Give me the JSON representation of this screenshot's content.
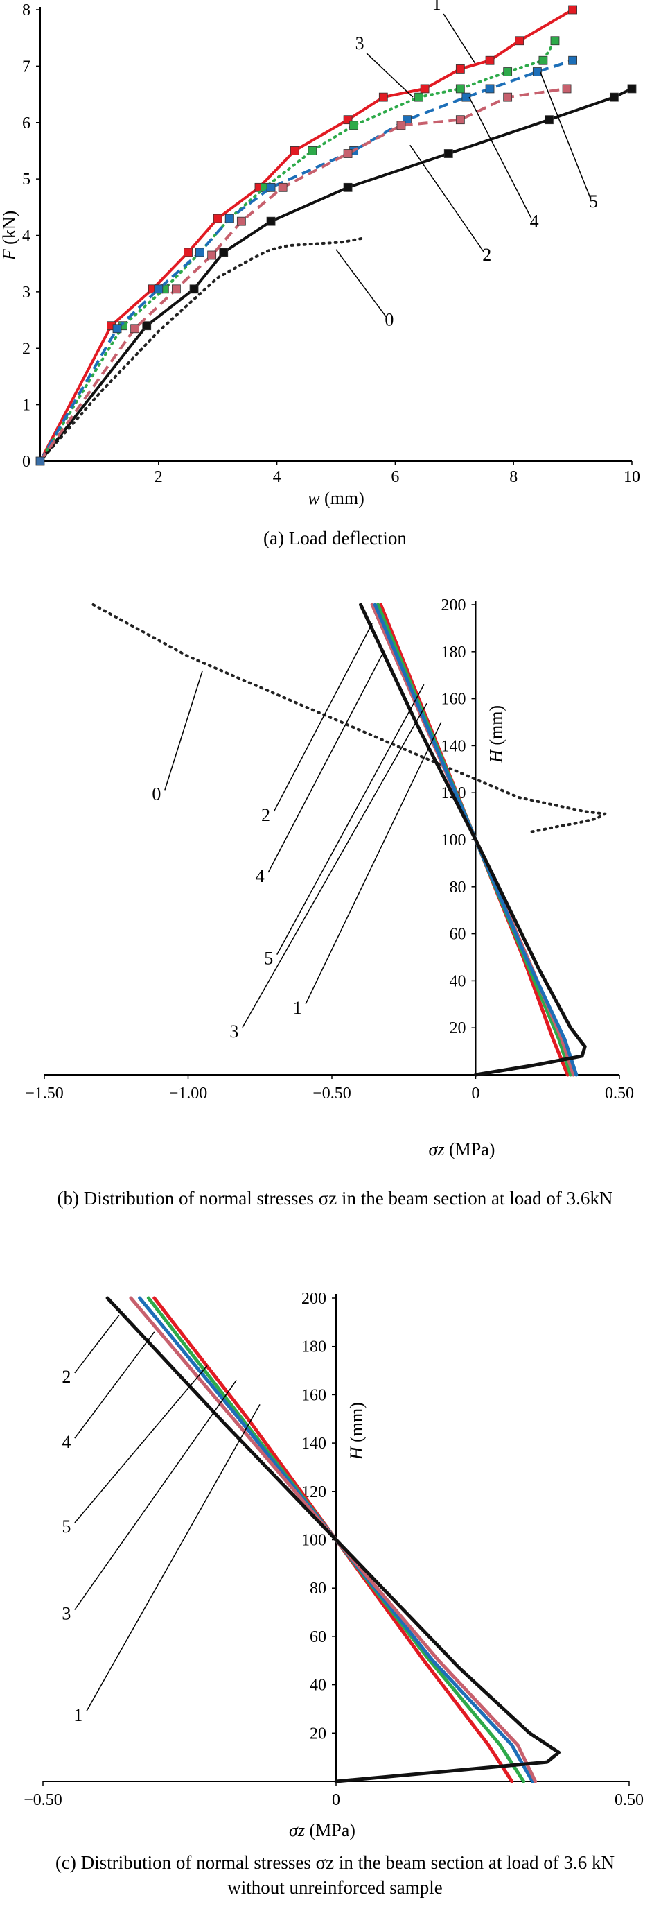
{
  "colors": {
    "curve0": "#222222",
    "curve1": "#e21b23",
    "curve2": "#111111",
    "curve3": "#2eaa4a",
    "curve4": "#1d6fb8",
    "curve5": "#c7606d",
    "axis": "#000000"
  },
  "chart_data": [
    {
      "type": "line",
      "id": "a",
      "caption": "(a) Load deflection",
      "xlabel_var": "w",
      "xlabel_unit": " (mm)",
      "ylabel_var": "F",
      "ylabel_unit": " (kN)",
      "xlim": [
        0,
        10
      ],
      "ylim": [
        0,
        8
      ],
      "xticks": [
        "2",
        "4",
        "6",
        "8",
        "10"
      ],
      "yticks": [
        "0",
        "1",
        "2",
        "3",
        "4",
        "5",
        "6",
        "7",
        "8"
      ],
      "series": [
        {
          "name": "0",
          "color_key": "curve0",
          "dash": "dot",
          "markers": false,
          "x": [
            0,
            1,
            2,
            3,
            3.6,
            3.9,
            4.2,
            5.1,
            5.45
          ],
          "y": [
            0,
            1.2,
            2.3,
            3.25,
            3.6,
            3.75,
            3.82,
            3.88,
            3.95
          ]
        },
        {
          "name": "1",
          "color_key": "curve1",
          "dash": "solid",
          "markers": true,
          "x": [
            0,
            1.2,
            1.9,
            2.5,
            3.0,
            3.7,
            4.3,
            5.2,
            5.8,
            6.5,
            7.1,
            7.6,
            8.1,
            9.0
          ],
          "y": [
            0,
            2.4,
            3.05,
            3.7,
            4.3,
            4.85,
            5.5,
            6.05,
            6.45,
            6.6,
            6.95,
            7.1,
            7.45,
            8.0
          ]
        },
        {
          "name": "2",
          "color_key": "curve2",
          "dash": "solid",
          "markers": true,
          "x": [
            0,
            1.8,
            2.6,
            3.1,
            3.9,
            5.2,
            6.9,
            8.6,
            9.7,
            10.0
          ],
          "y": [
            0,
            2.4,
            3.05,
            3.7,
            4.25,
            4.85,
            5.45,
            6.05,
            6.45,
            6.6
          ]
        },
        {
          "name": "3",
          "color_key": "curve3",
          "dash": "dot",
          "markers": true,
          "x": [
            0,
            1.4,
            2.1,
            2.7,
            3.2,
            3.8,
            4.6,
            5.3,
            6.4,
            7.1,
            7.9,
            8.5,
            8.7
          ],
          "y": [
            0,
            2.4,
            3.05,
            3.7,
            4.3,
            4.85,
            5.5,
            5.95,
            6.45,
            6.6,
            6.9,
            7.1,
            7.45
          ]
        },
        {
          "name": "4",
          "color_key": "curve4",
          "dash": "dash",
          "markers": true,
          "x": [
            0,
            1.3,
            2.0,
            2.7,
            3.2,
            3.9,
            5.3,
            6.2,
            7.2,
            7.6,
            8.4,
            9.0
          ],
          "y": [
            0,
            2.35,
            3.05,
            3.7,
            4.3,
            4.85,
            5.5,
            6.05,
            6.45,
            6.6,
            6.9,
            7.1
          ]
        },
        {
          "name": "5",
          "color_key": "curve5",
          "dash": "dash",
          "markers": true,
          "x": [
            0,
            1.6,
            2.3,
            2.9,
            3.4,
            4.1,
            5.2,
            6.1,
            7.1,
            7.9,
            8.9
          ],
          "y": [
            0,
            2.35,
            3.05,
            3.65,
            4.25,
            4.85,
            5.45,
            5.95,
            6.05,
            6.45,
            6.6
          ]
        }
      ],
      "labels": [
        {
          "text": "1",
          "tx": 6.7,
          "ty": 8.0,
          "ax": 7.35,
          "ay": 7.05
        },
        {
          "text": "3",
          "tx": 5.4,
          "ty": 7.3,
          "ax": 6.3,
          "ay": 6.45
        },
        {
          "text": "2",
          "tx": 7.55,
          "ty": 3.55,
          "ax": 6.25,
          "ay": 5.6
        },
        {
          "text": "4",
          "tx": 8.35,
          "ty": 4.15,
          "ax": 7.25,
          "ay": 6.45
        },
        {
          "text": "5",
          "tx": 9.35,
          "ty": 4.5,
          "ax": 8.45,
          "ay": 6.9
        },
        {
          "text": "0",
          "tx": 5.9,
          "ty": 2.4,
          "ax": 5.0,
          "ay": 3.75
        }
      ]
    },
    {
      "type": "line",
      "id": "b",
      "caption": "(b) Distribution of normal stresses σz in the beam section at load of 3.6kN",
      "xlabel_var": "σz",
      "xlabel_unit": " (MPa)",
      "ylabel_var": "H",
      "ylabel_unit": " (mm)",
      "xlim": [
        -1.5,
        0.5
      ],
      "ylim": [
        0,
        200
      ],
      "xticks": [
        "−1.50",
        "−1.00",
        "−0.50",
        "0",
        "0.50"
      ],
      "yticks": [
        "20",
        "40",
        "60",
        "80",
        "100",
        "120",
        "140",
        "160",
        "180",
        "200"
      ],
      "series": [
        {
          "name": "0",
          "color_key": "curve0",
          "dash": "dot",
          "x": [
            -1.33,
            -1.0,
            -0.6,
            -0.2,
            0.15,
            0.38,
            0.45,
            0.42,
            0.35,
            0.3,
            0.18
          ],
          "y": [
            200,
            178,
            157,
            136,
            118,
            112,
            111,
            109,
            107,
            106,
            103
          ]
        },
        {
          "name": "1",
          "color_key": "curve1",
          "dash": "solid",
          "x": [
            -0.33,
            -0.165,
            0,
            0.165,
            0.27,
            0.32
          ],
          "y": [
            200,
            150,
            100,
            50,
            15,
            0
          ]
        },
        {
          "name": "3",
          "color_key": "curve3",
          "dash": "solid",
          "x": [
            -0.34,
            -0.17,
            0,
            0.17,
            0.29,
            0.33
          ],
          "y": [
            200,
            150,
            100,
            50,
            15,
            0
          ]
        },
        {
          "name": "5",
          "color_key": "curve5",
          "dash": "solid",
          "x": [
            -0.36,
            -0.18,
            0,
            0.18,
            0.3,
            0.34
          ],
          "y": [
            200,
            150,
            100,
            50,
            15,
            0
          ]
        },
        {
          "name": "4",
          "color_key": "curve4",
          "dash": "solid",
          "x": [
            -0.35,
            -0.175,
            0,
            0.175,
            0.31,
            0.35
          ],
          "y": [
            200,
            150,
            100,
            50,
            15,
            0
          ]
        },
        {
          "name": "2",
          "color_key": "curve2",
          "dash": "solid",
          "x": [
            -0.4,
            -0.2,
            0,
            0.22,
            0.33,
            0.38,
            0.37,
            0.2,
            0.0
          ],
          "y": [
            200,
            148,
            100,
            45,
            20,
            12,
            8,
            4,
            0
          ]
        }
      ],
      "labels": [
        {
          "text": "0",
          "tx": -1.11,
          "ty": 117,
          "ax": -0.95,
          "ay": 172
        },
        {
          "text": "2",
          "tx": -0.73,
          "ty": 108,
          "ax": -0.36,
          "ay": 192
        },
        {
          "text": "4",
          "tx": -0.75,
          "ty": 82,
          "ax": -0.32,
          "ay": 180
        },
        {
          "text": "5",
          "tx": -0.72,
          "ty": 47,
          "ax": -0.18,
          "ay": 166
        },
        {
          "text": "3",
          "tx": -0.84,
          "ty": 16,
          "ax": -0.17,
          "ay": 158
        },
        {
          "text": "1",
          "tx": -0.62,
          "ty": 26,
          "ax": -0.12,
          "ay": 150
        }
      ]
    },
    {
      "type": "line",
      "id": "c",
      "caption": "(c) Distribution of normal stresses σz in the beam section at load of 3.6 kN without unreinforced sample",
      "xlabel_var": "σz",
      "xlabel_unit": " (MPa)",
      "ylabel_var": "H",
      "ylabel_unit": " (mm)",
      "xlim": [
        -0.5,
        0.5
      ],
      "ylim": [
        0,
        200
      ],
      "xticks": [
        "−0.50",
        "0",
        "0.50"
      ],
      "yticks": [
        "20",
        "40",
        "60",
        "80",
        "100",
        "120",
        "140",
        "160",
        "180",
        "200"
      ],
      "series": [
        {
          "name": "1",
          "color_key": "curve1",
          "dash": "solid",
          "x": [
            -0.31,
            -0.15,
            0,
            0.15,
            0.26,
            0.3
          ],
          "y": [
            200,
            150,
            100,
            50,
            15,
            0
          ]
        },
        {
          "name": "3",
          "color_key": "curve3",
          "dash": "solid",
          "x": [
            -0.32,
            -0.16,
            0,
            0.16,
            0.28,
            0.32
          ],
          "y": [
            200,
            150,
            100,
            50,
            15,
            0
          ]
        },
        {
          "name": "4",
          "color_key": "curve4",
          "dash": "solid",
          "x": [
            -0.335,
            -0.165,
            0,
            0.165,
            0.3,
            0.335
          ],
          "y": [
            200,
            150,
            100,
            50,
            15,
            0
          ]
        },
        {
          "name": "5",
          "color_key": "curve5",
          "dash": "solid",
          "x": [
            -0.35,
            -0.175,
            0,
            0.175,
            0.31,
            0.34
          ],
          "y": [
            200,
            150,
            100,
            50,
            15,
            0
          ]
        },
        {
          "name": "2",
          "color_key": "curve2",
          "dash": "solid",
          "x": [
            -0.39,
            -0.19,
            0,
            0.21,
            0.33,
            0.38,
            0.36,
            0.18,
            0.0
          ],
          "y": [
            200,
            148,
            100,
            47,
            20,
            12,
            8,
            4,
            0
          ]
        }
      ],
      "labels": [
        {
          "text": "2",
          "tx": -0.46,
          "ty": 165,
          "ax": -0.37,
          "ay": 193
        },
        {
          "text": "4",
          "tx": -0.46,
          "ty": 138,
          "ax": -0.31,
          "ay": 186
        },
        {
          "text": "5",
          "tx": -0.46,
          "ty": 103,
          "ax": -0.22,
          "ay": 172
        },
        {
          "text": "3",
          "tx": -0.46,
          "ty": 67,
          "ax": -0.17,
          "ay": 166
        },
        {
          "text": "1",
          "tx": -0.44,
          "ty": 25,
          "ax": -0.13,
          "ay": 156
        }
      ]
    }
  ]
}
